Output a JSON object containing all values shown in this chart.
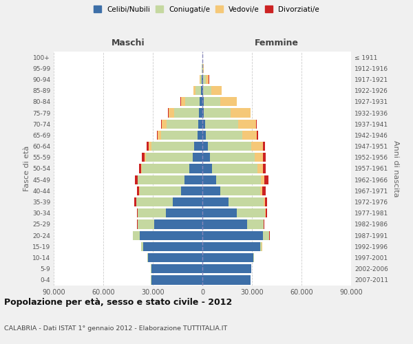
{
  "age_groups": [
    "0-4",
    "5-9",
    "10-14",
    "15-19",
    "20-24",
    "25-29",
    "30-34",
    "35-39",
    "40-44",
    "45-49",
    "50-54",
    "55-59",
    "60-64",
    "65-69",
    "70-74",
    "75-79",
    "80-84",
    "85-89",
    "90-94",
    "95-99",
    "100+"
  ],
  "birth_years": [
    "2007-2011",
    "2002-2006",
    "1997-2001",
    "1992-1996",
    "1987-1991",
    "1982-1986",
    "1977-1981",
    "1972-1976",
    "1967-1971",
    "1962-1966",
    "1957-1961",
    "1952-1956",
    "1947-1951",
    "1942-1946",
    "1937-1941",
    "1932-1936",
    "1927-1931",
    "1922-1926",
    "1917-1921",
    "1912-1916",
    "≤ 1911"
  ],
  "maschi": {
    "celibe": [
      31000,
      31000,
      33000,
      36000,
      38000,
      29000,
      22000,
      18000,
      13000,
      11000,
      8000,
      6000,
      5000,
      3000,
      2500,
      2000,
      1500,
      800,
      500,
      200,
      100
    ],
    "coniugato": [
      50,
      100,
      200,
      1000,
      4000,
      10000,
      17000,
      22000,
      25000,
      28000,
      28500,
      28000,
      26000,
      22000,
      19000,
      15000,
      9000,
      3500,
      800,
      200,
      50
    ],
    "vedovo": [
      5,
      10,
      20,
      30,
      50,
      80,
      100,
      150,
      200,
      300,
      500,
      1000,
      1500,
      2000,
      3000,
      3500,
      2500,
      1200,
      400,
      100,
      20
    ],
    "divorziato": [
      5,
      10,
      20,
      50,
      100,
      300,
      600,
      1000,
      1200,
      1500,
      1200,
      1500,
      1200,
      600,
      400,
      200,
      150,
      100,
      50,
      20,
      5
    ]
  },
  "femmine": {
    "nubile": [
      29000,
      29500,
      31000,
      35000,
      36500,
      27000,
      21000,
      16000,
      11000,
      8500,
      6000,
      4500,
      3500,
      2000,
      1500,
      1000,
      800,
      600,
      400,
      200,
      100
    ],
    "coniugata": [
      50,
      100,
      200,
      1000,
      4000,
      10000,
      17000,
      21000,
      24000,
      27000,
      27500,
      27000,
      26000,
      22000,
      20000,
      16000,
      10000,
      5000,
      1500,
      300,
      50
    ],
    "vedova": [
      5,
      10,
      20,
      50,
      100,
      200,
      400,
      800,
      1200,
      2000,
      3000,
      5000,
      7000,
      9000,
      11000,
      12000,
      10000,
      6000,
      2000,
      500,
      50
    ],
    "divorziata": [
      5,
      10,
      20,
      50,
      150,
      400,
      800,
      1500,
      2000,
      2500,
      2000,
      2000,
      1500,
      600,
      400,
      250,
      200,
      150,
      80,
      20,
      5
    ]
  },
  "colors": {
    "celibe": "#3d6fa8",
    "coniugato": "#c5d8a0",
    "vedovo": "#f5c878",
    "divorziato": "#cc2222"
  },
  "title": "Popolazione per età, sesso e stato civile - 2012",
  "subtitle": "CALABRIA - Dati ISTAT 1° gennaio 2012 - Elaborazione TUTTITALIA.IT",
  "xlabel_left": "Maschi",
  "xlabel_right": "Femmine",
  "ylabel_left": "Fasce di età",
  "ylabel_right": "Anni di nascita",
  "xlim": 90000,
  "bg_color": "#f0f0f0",
  "plot_bg": "#ffffff",
  "legend_labels": [
    "Celibi/Nubili",
    "Coniugati/e",
    "Vedovi/e",
    "Divorziati/e"
  ]
}
